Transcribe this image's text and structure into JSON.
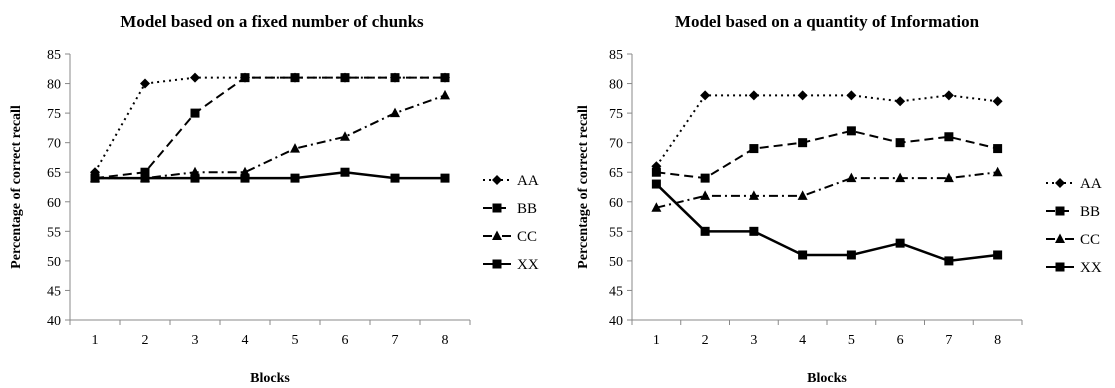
{
  "chart_data": [
    {
      "type": "line",
      "title": "Model based on a fixed number of chunks",
      "xlabel": "Blocks",
      "ylabel": "Percentage of correct recall",
      "ylim": [
        40,
        85
      ],
      "yticks": [
        40,
        45,
        50,
        55,
        60,
        65,
        70,
        75,
        80,
        85
      ],
      "x": [
        "1",
        "2",
        "3",
        "4",
        "5",
        "6",
        "7",
        "8"
      ],
      "grid": false,
      "legend_position": "right",
      "series": [
        {
          "name": "AA",
          "marker": "diamond",
          "dash": "dotted",
          "values": [
            65,
            80,
            81,
            81,
            81,
            81,
            81,
            81
          ]
        },
        {
          "name": "BB",
          "marker": "square",
          "dash": "dashed",
          "values": [
            64,
            65,
            75,
            81,
            81,
            81,
            81,
            81
          ]
        },
        {
          "name": "CC",
          "marker": "triangle",
          "dash": "dashdot",
          "values": [
            64,
            64,
            65,
            65,
            69,
            71,
            75,
            78
          ]
        },
        {
          "name": "XX",
          "marker": "square",
          "dash": "solid",
          "values": [
            64,
            64,
            64,
            64,
            64,
            65,
            64,
            64
          ]
        }
      ]
    },
    {
      "type": "line",
      "title": "Model based on a quantity of Information",
      "xlabel": "Blocks",
      "ylabel": "Percentage of correct recall",
      "ylim": [
        40,
        85
      ],
      "yticks": [
        40,
        45,
        50,
        55,
        60,
        65,
        70,
        75,
        80,
        85
      ],
      "x": [
        "1",
        "2",
        "3",
        "4",
        "5",
        "6",
        "7",
        "8"
      ],
      "grid": false,
      "legend_position": "right",
      "series": [
        {
          "name": "AA",
          "marker": "diamond",
          "dash": "dotted",
          "values": [
            66,
            78,
            78,
            78,
            78,
            77,
            78,
            77
          ]
        },
        {
          "name": "BB",
          "marker": "square",
          "dash": "dashed",
          "values": [
            65,
            64,
            69,
            70,
            72,
            70,
            71,
            69
          ]
        },
        {
          "name": "CC",
          "marker": "triangle",
          "dash": "dashdot",
          "values": [
            59,
            61,
            61,
            61,
            64,
            64,
            64,
            65
          ]
        },
        {
          "name": "XX",
          "marker": "square",
          "dash": "solid",
          "values": [
            63,
            55,
            55,
            51,
            51,
            53,
            50,
            51
          ]
        }
      ]
    }
  ]
}
